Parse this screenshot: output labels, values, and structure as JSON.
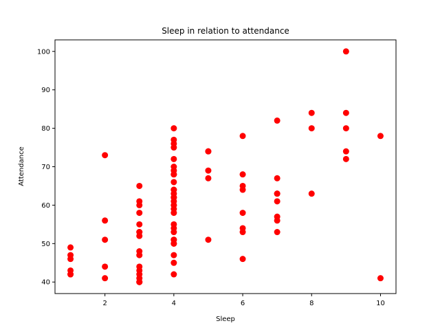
{
  "chart_data": {
    "type": "scatter",
    "title": "Sleep in relation to attendance",
    "xlabel": "Sleep",
    "ylabel": "Attendance",
    "xlim": [
      0.55,
      10.45
    ],
    "ylim": [
      37,
      103
    ],
    "xticks": [
      2,
      4,
      6,
      8,
      10
    ],
    "yticks": [
      40,
      50,
      60,
      70,
      80,
      90,
      100
    ],
    "grid": false,
    "legend": "none",
    "marker_color": "#ff0000",
    "series": [
      {
        "x": [
          1,
          1,
          1,
          1,
          1,
          1,
          2,
          2,
          2,
          2,
          2,
          3,
          3,
          3,
          3,
          3,
          3,
          3,
          3,
          3,
          3,
          3,
          3,
          3,
          3,
          3,
          3,
          3,
          4,
          4,
          4,
          4,
          4,
          4,
          4,
          4,
          4,
          4,
          4,
          4,
          4,
          4,
          4,
          4,
          4,
          4,
          4,
          4,
          4,
          4,
          4,
          4,
          4,
          4,
          4,
          4,
          4,
          4,
          5,
          5,
          5,
          5,
          5,
          6,
          6,
          6,
          6,
          6,
          6,
          6,
          6,
          7,
          7,
          7,
          7,
          7,
          7,
          7,
          7,
          8,
          8,
          8,
          9,
          9,
          9,
          9,
          9,
          10,
          10
        ],
        "y": [
          49,
          47,
          46,
          43,
          42,
          42,
          73,
          56,
          51,
          44,
          41,
          65,
          61,
          60,
          58,
          55,
          53,
          52,
          48,
          47,
          44,
          43,
          42,
          41,
          40,
          40,
          40,
          53,
          80,
          77,
          76,
          75,
          72,
          70,
          69,
          68,
          66,
          64,
          63,
          62,
          61,
          60,
          59,
          58,
          55,
          54,
          53,
          51,
          50,
          47,
          45,
          42,
          68,
          64,
          62,
          60,
          51,
          50,
          74,
          69,
          67,
          51,
          74,
          78,
          68,
          65,
          64,
          58,
          54,
          53,
          46,
          82,
          67,
          63,
          61,
          57,
          56,
          53,
          63,
          84,
          80,
          63,
          100,
          84,
          80,
          74,
          72,
          78,
          41
        ]
      }
    ]
  }
}
